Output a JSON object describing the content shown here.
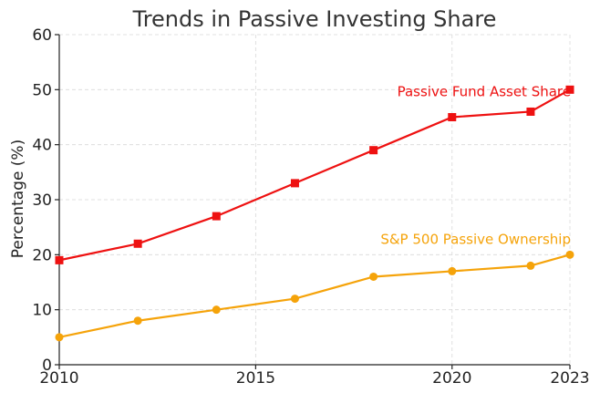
{
  "chart_data": {
    "type": "line",
    "title": "Trends in Passive Investing Share",
    "xlabel": "",
    "ylabel": "Percentage (%)",
    "xlim": [
      2010,
      2023
    ],
    "ylim": [
      0,
      60
    ],
    "x_ticks": [
      2010,
      2015,
      2020,
      2023
    ],
    "y_ticks": [
      0,
      10,
      20,
      30,
      40,
      50,
      60
    ],
    "grid": true,
    "x": [
      2010,
      2012,
      2014,
      2016,
      2018,
      2020,
      2022,
      2023
    ],
    "series": [
      {
        "name": "Passive Fund Asset Share",
        "color": "#ee1111",
        "marker": "square",
        "values": [
          19,
          22,
          27,
          33,
          39,
          45,
          46,
          50
        ]
      },
      {
        "name": "S&P 500 Passive Ownership",
        "color": "#f5a30a",
        "marker": "circle",
        "values": [
          5,
          8,
          10,
          12,
          16,
          17,
          18,
          20
        ]
      }
    ]
  }
}
